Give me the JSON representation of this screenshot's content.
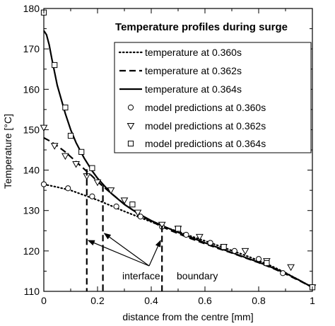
{
  "chart_data": {
    "type": "line",
    "title": "Temperature profiles during surge",
    "xlabel": "distance from the centre  [mm]",
    "ylabel": "Temperature  [°C]",
    "xlim": [
      0,
      1
    ],
    "ylim": [
      110,
      180
    ],
    "xticks": [
      "0",
      "0.2",
      "0.4",
      "0.6",
      "0.8",
      "1"
    ],
    "yticks": [
      "110",
      "120",
      "130",
      "140",
      "150",
      "160",
      "170",
      "180"
    ],
    "grid": false,
    "legend_position": "top-right",
    "series": [
      {
        "name": "temperature at 0.360s",
        "style": "dotted",
        "x": [
          0,
          0.05,
          0.1,
          0.15,
          0.2,
          0.25,
          0.3,
          0.35,
          0.4,
          0.45,
          0.5,
          0.55,
          0.6,
          0.65,
          0.7,
          0.75,
          0.8,
          0.85,
          0.9,
          0.95,
          1.0
        ],
        "y": [
          136.5,
          135.8,
          135.0,
          133.8,
          132.6,
          131.2,
          129.8,
          128.5,
          127.2,
          125.9,
          124.8,
          123.6,
          122.5,
          121.3,
          120.1,
          118.9,
          117.6,
          116.2,
          114.6,
          112.8,
          111.0
        ]
      },
      {
        "name": "temperature at 0.362s",
        "style": "dashed",
        "x": [
          0,
          0.02,
          0.05,
          0.08,
          0.1,
          0.12,
          0.15,
          0.18,
          0.2,
          0.22,
          0.25,
          0.3,
          0.35,
          0.4,
          0.45,
          0.5,
          0.55,
          0.6,
          0.65,
          0.7,
          0.75,
          0.8,
          0.85,
          0.9,
          0.95,
          1.0
        ],
        "y": [
          148.0,
          147.3,
          146.0,
          144.5,
          143.3,
          142.1,
          140.3,
          138.5,
          137.2,
          136.0,
          134.3,
          131.6,
          129.2,
          127.3,
          125.7,
          124.3,
          123.0,
          121.8,
          120.6,
          119.5,
          118.3,
          117.1,
          115.8,
          114.3,
          112.7,
          111.0
        ]
      },
      {
        "name": "temperature at  0.364s",
        "style": "solid",
        "x": [
          0,
          0.01,
          0.02,
          0.03,
          0.05,
          0.08,
          0.1,
          0.12,
          0.15,
          0.18,
          0.2,
          0.25,
          0.3,
          0.35,
          0.4,
          0.45,
          0.5,
          0.55,
          0.6,
          0.65,
          0.7,
          0.75,
          0.8,
          0.85,
          0.9,
          0.95,
          1.0
        ],
        "y": [
          174.5,
          173.5,
          171.0,
          167.5,
          161.0,
          154.0,
          150.0,
          146.8,
          143.0,
          139.8,
          138.0,
          134.3,
          131.5,
          129.3,
          127.5,
          126.0,
          124.6,
          123.3,
          122.0,
          120.8,
          119.6,
          118.4,
          117.2,
          115.9,
          114.5,
          112.8,
          111.0
        ]
      }
    ],
    "markers": [
      {
        "name": "model predictions at  0.360s",
        "shape": "circle",
        "x": [
          0,
          0.09,
          0.18,
          0.27,
          0.36,
          0.44,
          0.53,
          0.62,
          0.71,
          0.8,
          0.89,
          1.0
        ],
        "y": [
          136.5,
          135.5,
          133.5,
          131.0,
          128.5,
          126.0,
          124.0,
          122.0,
          120.0,
          118.0,
          114.5,
          111.0
        ]
      },
      {
        "name": "model predictions at  0.362s",
        "shape": "triangle-down",
        "x": [
          0,
          0.04,
          0.08,
          0.12,
          0.16,
          0.2,
          0.25,
          0.3,
          0.35,
          0.44,
          0.5,
          0.58,
          0.67,
          0.75,
          0.83,
          0.92,
          1.0
        ],
        "y": [
          150.5,
          146.0,
          143.5,
          141.5,
          138.5,
          137.0,
          135.0,
          132.5,
          129.5,
          126.5,
          125.5,
          123.5,
          121.0,
          120.0,
          117.5,
          116.0,
          111.0
        ]
      },
      {
        "name": "model predictions at  0.364s",
        "shape": "square",
        "x": [
          0,
          0.04,
          0.08,
          0.1,
          0.14,
          0.18,
          0.33,
          0.5,
          0.67,
          0.83,
          1.0
        ],
        "y": [
          179.0,
          166.0,
          155.5,
          148.5,
          144.5,
          140.5,
          131.5,
          125.5,
          121.0,
          117.0,
          111.0
        ]
      }
    ],
    "annotations": {
      "label_1": "interface",
      "label_2": "boundary",
      "boundaries": [
        {
          "x": 0.16,
          "y_top": 140.2
        },
        {
          "x": 0.22,
          "y_top": 136.2
        },
        {
          "x": 0.44,
          "y_top": 126.2
        }
      ]
    }
  }
}
